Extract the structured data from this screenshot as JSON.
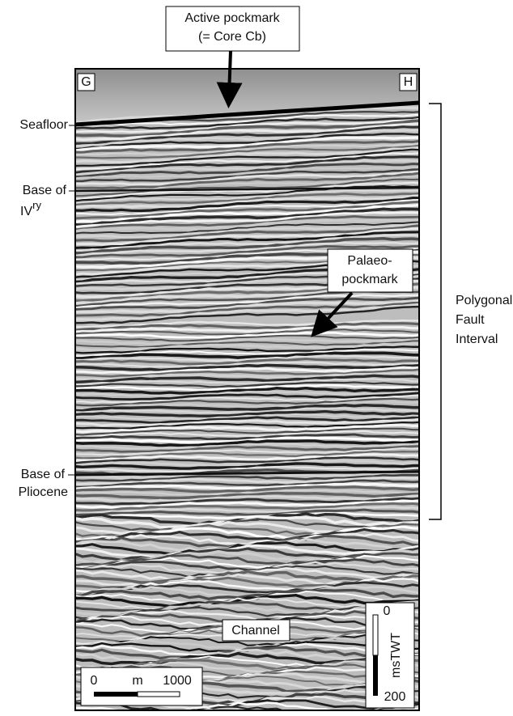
{
  "figure": {
    "top_label": [
      "Active pockmark",
      "(= Core Cb)"
    ],
    "corner_left": "G",
    "corner_right": "H",
    "left_labels": {
      "seafloor": "Seafloor",
      "base_quaternary": {
        "line1": "Base of",
        "main": "IV",
        "sup": "ry"
      },
      "base_pliocene": [
        "Base of",
        "Pliocene"
      ]
    },
    "palaeo_label": [
      "Palaeo-",
      "pockmark"
    ],
    "interval_label": [
      "Polygonal",
      "Fault",
      "Interval"
    ],
    "channel_label": "Channel",
    "horizontal_scale": {
      "start": "0",
      "unit": "m",
      "end": "1000"
    },
    "vertical_scale": {
      "start": "0",
      "unit": "msTWT",
      "end": "200"
    }
  }
}
